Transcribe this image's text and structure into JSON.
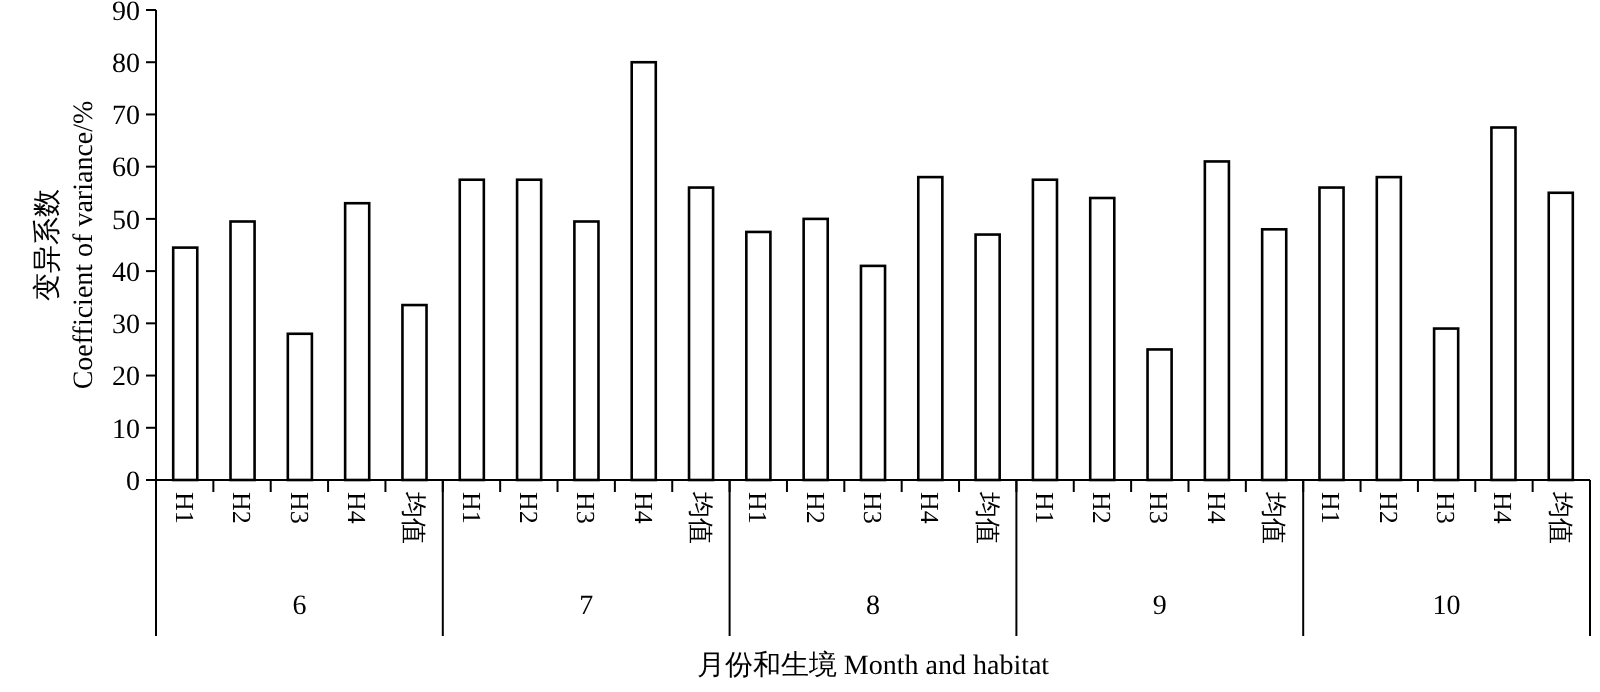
{
  "chart_data": {
    "type": "bar",
    "xlabel": "月份和生境 Month and habitat",
    "ylabel": "变异系数\nCoefficient of variance/%",
    "categories": [
      "H1",
      "H2",
      "H3",
      "H4",
      "均值",
      "H1",
      "H2",
      "H3",
      "H4",
      "均值",
      "H1",
      "H2",
      "H3",
      "H4",
      "均值",
      "H1",
      "H2",
      "H3",
      "H4",
      "均值",
      "H1",
      "H2",
      "H3",
      "H4",
      "均值"
    ],
    "values": [
      44.5,
      49.5,
      28,
      53,
      33.5,
      57.5,
      57.5,
      49.5,
      80,
      56,
      47.5,
      50,
      41,
      58,
      47,
      57.5,
      54,
      25,
      61,
      48,
      56,
      58,
      29,
      67.5,
      55
    ],
    "color": "#ffffff",
    "ylim": [
      0,
      90
    ],
    "yticks": [
      0,
      10,
      20,
      30,
      40,
      50,
      60,
      70,
      80,
      90
    ],
    "grid": false,
    "annotations": [
      "6",
      "7",
      "8",
      "9",
      "10"
    ]
  }
}
